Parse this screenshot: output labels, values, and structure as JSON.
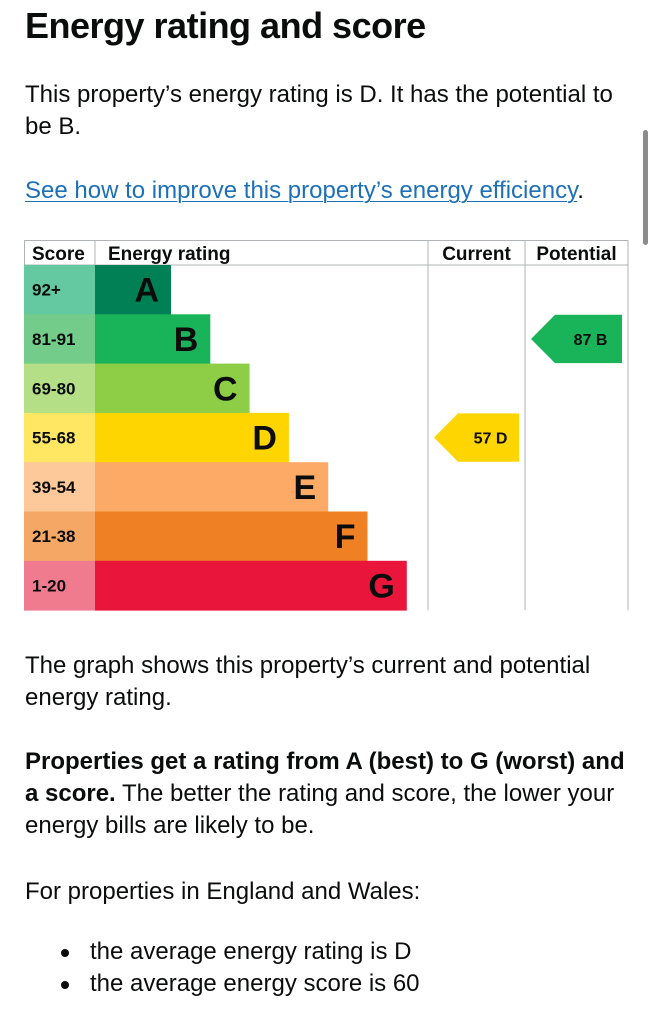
{
  "heading": "Energy rating and score",
  "intro": "This property’s energy rating is D. It has the potential to be B.",
  "improve_link": "See how to improve this property’s energy efficiency",
  "improve_suffix": ".",
  "graph_description": "The graph shows this property’s current and potential energy rating.",
  "ratings_bold": "Properties get a rating from A (best) to G (worst) and a score.",
  "ratings_rest": " The better the rating and score, the lower your energy bills are likely to be.",
  "england_intro": "For properties in England and Wales:",
  "averages": [
    "the average energy rating is D",
    "the average energy score is 60"
  ],
  "chart_data": {
    "type": "bar",
    "columns": [
      "Score",
      "Energy rating",
      "Current",
      "Potential"
    ],
    "bands": [
      {
        "letter": "A",
        "score": "92+",
        "color": "#008054",
        "score_bg": "#64c9a0"
      },
      {
        "letter": "B",
        "score": "81-91",
        "color": "#19b459",
        "score_bg": "#73cc89"
      },
      {
        "letter": "C",
        "score": "69-80",
        "color": "#8dce46",
        "score_bg": "#b4df86"
      },
      {
        "letter": "D",
        "score": "55-68",
        "color": "#ffd500",
        "score_bg": "#ffe764"
      },
      {
        "letter": "E",
        "score": "39-54",
        "color": "#fcaa65",
        "score_bg": "#fdc89a"
      },
      {
        "letter": "F",
        "score": "21-38",
        "color": "#ef8023",
        "score_bg": "#f5a866"
      },
      {
        "letter": "G",
        "score": "1-20",
        "color": "#e9153b",
        "score_bg": "#f07a8e"
      }
    ],
    "current": {
      "score": 57,
      "letter": "D",
      "label": "57 D"
    },
    "potential": {
      "score": 87,
      "letter": "B",
      "label": "87 B"
    }
  }
}
